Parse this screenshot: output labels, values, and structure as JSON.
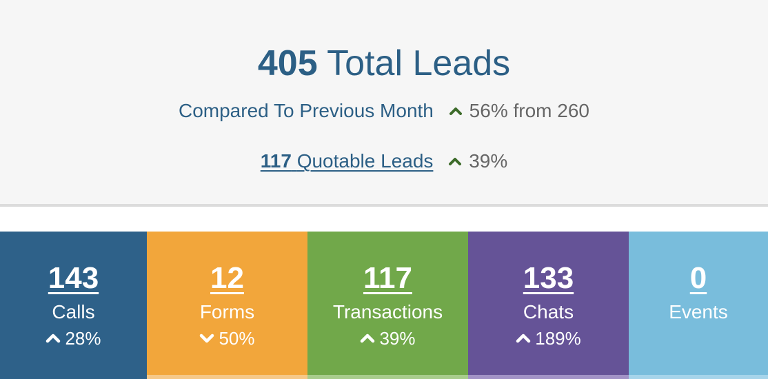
{
  "summary": {
    "total_count": "405",
    "total_label": "Total Leads",
    "compare_label": "Compared To Previous Month",
    "compare_icon": "chevron-up-icon",
    "compare_delta": "56% from 260",
    "quotable_count": "117",
    "quotable_label": "Quotable Leads",
    "quotable_icon": "chevron-up-icon",
    "quotable_delta": "39%",
    "arrow_color": "#3d6b2a",
    "text_color": "#2c5f85"
  },
  "tiles": [
    {
      "count": "143",
      "name": "Calls",
      "trend_icon": "chevron-up-icon",
      "change": "28%",
      "color": "#2e6189",
      "strip_color": "#2e6189"
    },
    {
      "count": "12",
      "name": "Forms",
      "trend_icon": "chevron-down-icon",
      "change": "50%",
      "color": "#f2a63b",
      "strip_color": "#f6c888"
    },
    {
      "count": "117",
      "name": "Transactions",
      "trend_icon": "chevron-up-icon",
      "change": "39%",
      "color": "#71a84a",
      "strip_color": "#a8cc8c"
    },
    {
      "count": "133",
      "name": "Chats",
      "trend_icon": "chevron-up-icon",
      "change": "189%",
      "color": "#655397",
      "strip_color": "#a293c6"
    },
    {
      "count": "0",
      "name": "Events",
      "trend_icon": "",
      "change": "",
      "color": "#79bddc",
      "strip_color": "#a6d4ea"
    }
  ]
}
